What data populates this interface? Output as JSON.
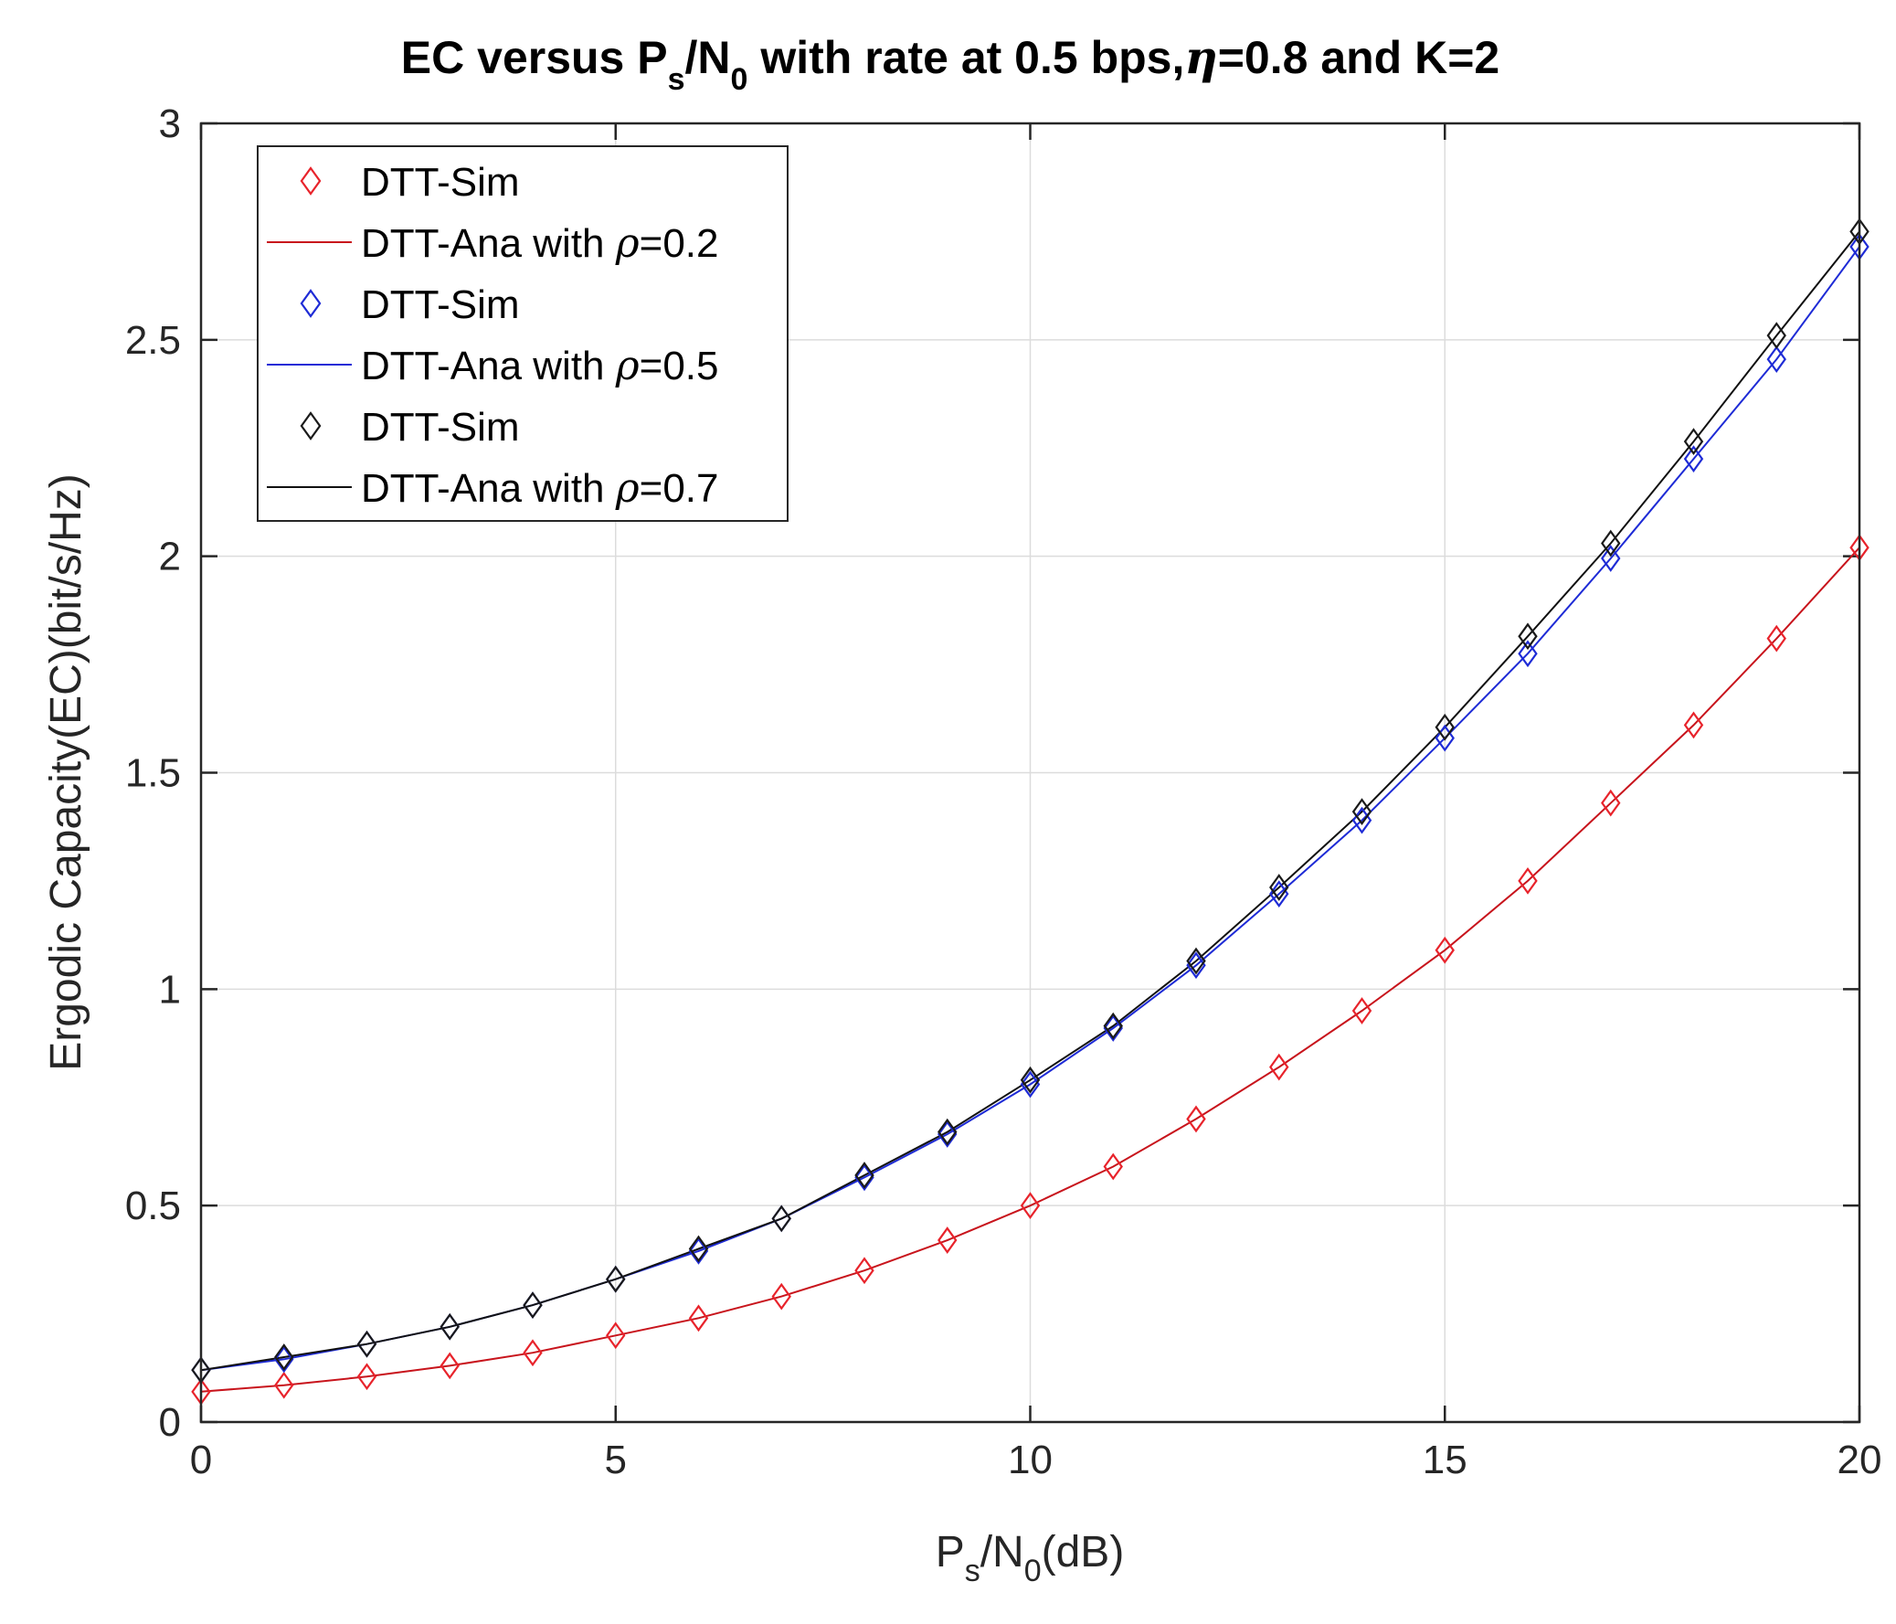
{
  "chart_data": {
    "type": "line",
    "title": {
      "lead": "EC versus P",
      "sub1": "s",
      "mid": "/N",
      "sub2": "0",
      "rest1": " with rate at 0.5 bps,",
      "eta_symbol": "η",
      "rest2": "=0.8 and K=2"
    },
    "xlabel": {
      "lead": "P",
      "sub1": "s",
      "mid": "/N",
      "sub2": "0",
      "rest": "(dB)"
    },
    "ylabel": "Ergodic Capacity(EC)(bit/s/Hz)",
    "xlim": [
      0,
      20
    ],
    "ylim": [
      0,
      3
    ],
    "xticks": [
      0,
      5,
      10,
      15,
      20
    ],
    "xtick_labels": [
      "0",
      "5",
      "10",
      "15",
      "20"
    ],
    "yticks": [
      0,
      0.5,
      1,
      1.5,
      2,
      2.5,
      3
    ],
    "ytick_labels": [
      "0",
      "0.5",
      "1",
      "1.5",
      "2",
      "2.5",
      "3"
    ],
    "grid": true,
    "legend_position": "top-left",
    "x": [
      0,
      1,
      2,
      3,
      4,
      5,
      6,
      7,
      8,
      9,
      10,
      11,
      12,
      13,
      14,
      15,
      16,
      17,
      18,
      19,
      20
    ],
    "series": [
      {
        "sim_name": "DTT-Sim",
        "ana_name": "DTT-Ana with ",
        "rho_symbol": "ρ",
        "rho_text": "=0.2",
        "color": "#e8232b",
        "line_color": "#c8141c",
        "values": [
          0.07,
          0.085,
          0.105,
          0.13,
          0.16,
          0.2,
          0.24,
          0.29,
          0.35,
          0.42,
          0.5,
          0.59,
          0.7,
          0.82,
          0.95,
          1.09,
          1.25,
          1.43,
          1.61,
          1.81,
          2.02
        ]
      },
      {
        "sim_name": "DTT-Sim",
        "ana_name": "DTT-Ana with ",
        "rho_symbol": "ρ",
        "rho_text": "=0.5",
        "color": "#1e2bd6",
        "line_color": "#1e2bd6",
        "values": [
          0.12,
          0.145,
          0.18,
          0.22,
          0.27,
          0.33,
          0.395,
          0.47,
          0.565,
          0.665,
          0.78,
          0.91,
          1.055,
          1.22,
          1.39,
          1.58,
          1.775,
          1.995,
          2.225,
          2.455,
          2.715
        ]
      },
      {
        "sim_name": "DTT-Sim",
        "ana_name": "DTT-Ana with ",
        "rho_symbol": "ρ",
        "rho_text": "=0.7",
        "color": "#1a1a1a",
        "line_color": "#111111",
        "values": [
          0.12,
          0.15,
          0.18,
          0.22,
          0.27,
          0.33,
          0.4,
          0.47,
          0.57,
          0.67,
          0.79,
          0.915,
          1.065,
          1.235,
          1.41,
          1.605,
          1.815,
          2.03,
          2.265,
          2.51,
          2.75
        ]
      }
    ]
  }
}
